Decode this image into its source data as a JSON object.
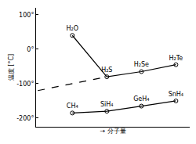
{
  "chart_data": {
    "type": "line",
    "y_label": "温度 [°C]",
    "x_label": "→ 分子量",
    "categories": [
      null,
      null,
      null,
      null,
      null
    ],
    "tick_labels": "y",
    "grid": false,
    "ylim": [
      -225,
      120
    ],
    "yticks": [
      {
        "value": 100,
        "label": "100°"
      },
      {
        "value": 0,
        "label": "0°"
      },
      {
        "value": -100,
        "label": "-100°"
      },
      {
        "value": -200,
        "label": "-200°"
      }
    ],
    "series": [
      {
        "values": [
          null,
          40,
          -80,
          -65,
          -45
        ],
        "labels": [
          null,
          "H₂O",
          "H₂S",
          "H₂Se",
          "H₂Te"
        ],
        "color": "#000000",
        "marker": "circle-open",
        "line_style": "solid"
      },
      {
        "values": [
          null,
          -185,
          -180,
          -165,
          -150
        ],
        "labels": [
          null,
          "CH₄",
          "SiH₄",
          "GeH₄",
          "SnH₄"
        ],
        "color": "#000000",
        "marker": "circle-open",
        "line_style": "solid"
      },
      {
        "values": [
          -120,
          null,
          -80,
          null,
          null
        ],
        "color": "#000000",
        "marker": "none",
        "line_style": "dashed"
      }
    ]
  }
}
